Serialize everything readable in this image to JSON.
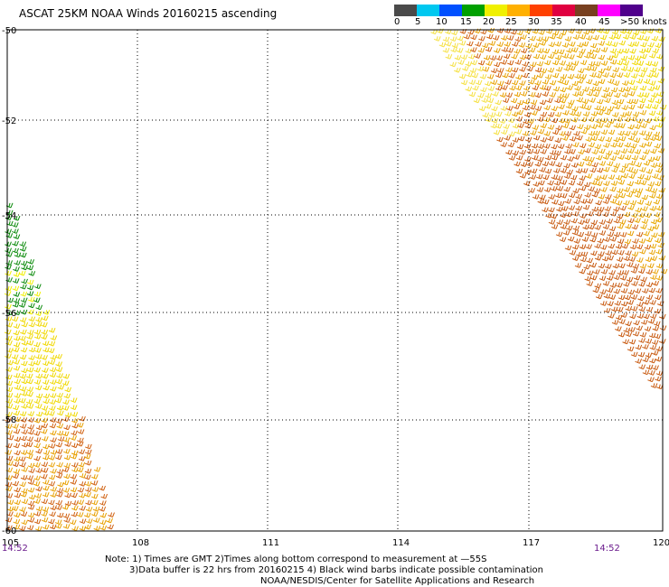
{
  "title": "ASCAT 25KM NOAA Winds 20160215 ascending",
  "legend": {
    "unit": "knots",
    "colors": [
      "#4a4a4a",
      "#00c8f0",
      "#0050ff",
      "#00a000",
      "#f0f000",
      "#ffb000",
      "#ff4000",
      "#e00040",
      "#784020",
      "#ff00ff",
      "#50008c"
    ],
    "labels": [
      "0",
      "5",
      "10",
      "15",
      "20",
      "25",
      "30",
      "35",
      "40",
      "45",
      ">50 knots"
    ]
  },
  "axes": {
    "lon_ticks": [
      "105",
      "108",
      "111",
      "114",
      "117",
      "120"
    ],
    "lat_ticks": [
      "-50",
      "-52",
      "-54",
      "-56",
      "-58",
      "-60"
    ]
  },
  "pass_times": {
    "left": "14:52",
    "right": "14:52"
  },
  "notes": {
    "line1": "Note: 1) Times are GMT 2)Times along bottom correspond to measurement at —55S",
    "line2": "3)Data buffer is 22 hrs from 20160215 4) Black wind barbs indicate possible contamination",
    "line3": "NOAA/NESDIS/Center for Satellite Applications and Research"
  }
}
